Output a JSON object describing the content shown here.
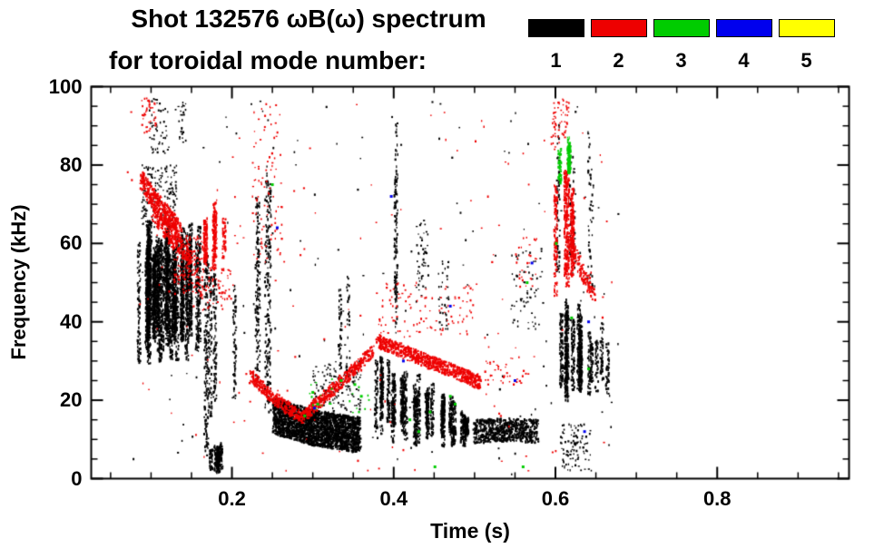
{
  "title": {
    "line1": "Shot 132576 ωB(ω) spectrum",
    "line2": "for toroidal mode number:"
  },
  "legend": {
    "modes": [
      {
        "label": "1",
        "color": "#000000"
      },
      {
        "label": "2",
        "color": "#ee0000"
      },
      {
        "label": "3",
        "color": "#00cc00"
      },
      {
        "label": "4",
        "color": "#0000ee"
      },
      {
        "label": "5",
        "color": "#ffff00"
      }
    ]
  },
  "chart_data": {
    "type": "scatter",
    "title": "Shot 132576 ωB(ω) spectrum for toroidal mode number",
    "xlabel": "Time (s)",
    "ylabel": "Frequency (kHz)",
    "xlim": [
      0.026,
      0.963
    ],
    "ylim": [
      0,
      100
    ],
    "x_major_ticks": [
      0.2,
      0.4,
      0.6,
      0.8
    ],
    "x_tick_labels": [
      "0.2",
      "0.4",
      "0.6",
      "0.8"
    ],
    "x_minor_step": 0.05,
    "y_major_ticks": [
      0,
      20,
      40,
      60,
      80,
      100
    ],
    "y_tick_labels": [
      "0",
      "20",
      "40",
      "60",
      "80",
      "100"
    ],
    "y_minor_step": 5,
    "grid": false,
    "legend_position": "top-right",
    "series": [
      {
        "name": "n=1",
        "mode": 1,
        "color": "#000000",
        "clusters": [
          {
            "shape": "striated",
            "t": [
              0.085,
              0.163
            ],
            "f": [
              28,
              66
            ],
            "n": 3800,
            "lines": 34
          },
          {
            "shape": "scatter",
            "t": [
              0.088,
              0.132
            ],
            "f": [
              64,
              80
            ],
            "n": 170
          },
          {
            "shape": "scatter",
            "t": [
              0.098,
              0.122
            ],
            "f": [
              83,
              97
            ],
            "n": 50
          },
          {
            "shape": "scatter",
            "t": [
              0.133,
              0.143
            ],
            "f": [
              86,
              96
            ],
            "n": 25
          },
          {
            "shape": "striated",
            "t": [
              0.165,
              0.205
            ],
            "f": [
              4,
              62
            ],
            "n": 420,
            "lines": 5
          },
          {
            "shape": "striated",
            "t": [
              0.172,
              0.202
            ],
            "f": [
              1,
              9
            ],
            "n": 260,
            "lines": 6
          },
          {
            "shape": "striated",
            "t": [
              0.225,
              0.268
            ],
            "f": [
              10,
              95
            ],
            "n": 360,
            "lines": 4
          },
          {
            "shape": "band",
            "path": [
              [
                0.252,
                16
              ],
              [
                0.3,
                13
              ],
              [
                0.358,
                11
              ]
            ],
            "thick": 9,
            "n": 2400
          },
          {
            "shape": "scatter",
            "t": [
              0.3,
              0.36
            ],
            "f": [
              17,
              30
            ],
            "n": 140
          },
          {
            "shape": "striated",
            "t": [
              0.325,
              0.345
            ],
            "f": [
              20,
              55
            ],
            "n": 70,
            "lines": 2
          },
          {
            "shape": "striated",
            "t": [
              0.378,
              0.388
            ],
            "f": [
              8,
              33
            ],
            "n": 230,
            "lines": 3
          },
          {
            "shape": "striated",
            "t": [
              0.393,
              0.403
            ],
            "f": [
              8,
              31
            ],
            "n": 230,
            "lines": 3
          },
          {
            "shape": "striated",
            "t": [
              0.408,
              0.418
            ],
            "f": [
              8,
              29
            ],
            "n": 220,
            "lines": 3
          },
          {
            "shape": "striated",
            "t": [
              0.423,
              0.433
            ],
            "f": [
              8,
              27
            ],
            "n": 220,
            "lines": 3
          },
          {
            "shape": "striated",
            "t": [
              0.438,
              0.448
            ],
            "f": [
              8,
              25
            ],
            "n": 210,
            "lines": 3
          },
          {
            "shape": "striated",
            "t": [
              0.453,
              0.463
            ],
            "f": [
              8,
              23
            ],
            "n": 200,
            "lines": 3
          },
          {
            "shape": "striated",
            "t": [
              0.468,
              0.478
            ],
            "f": [
              8,
              21
            ],
            "n": 190,
            "lines": 3
          },
          {
            "shape": "striated",
            "t": [
              0.484,
              0.497
            ],
            "f": [
              8,
              18
            ],
            "n": 180,
            "lines": 3
          },
          {
            "shape": "band",
            "path": [
              [
                0.5,
                12
              ],
              [
                0.545,
                12.5
              ],
              [
                0.578,
                12
              ]
            ],
            "thick": 6,
            "n": 650
          },
          {
            "shape": "striated",
            "t": [
              0.394,
              0.406
            ],
            "f": [
              30,
              96
            ],
            "n": 130,
            "lines": 2
          },
          {
            "shape": "scatter",
            "t": [
              0.428,
              0.443
            ],
            "f": [
              45,
              66
            ],
            "n": 50
          },
          {
            "shape": "scatter",
            "t": [
              0.455,
              0.468
            ],
            "f": [
              38,
              56
            ],
            "n": 35
          },
          {
            "shape": "striated",
            "t": [
              0.598,
              0.632
            ],
            "f": [
              18,
              46
            ],
            "n": 850,
            "lines": 8
          },
          {
            "shape": "striated",
            "t": [
              0.632,
              0.667
            ],
            "f": [
              20,
              40
            ],
            "n": 260,
            "lines": 5
          },
          {
            "shape": "striated",
            "t": [
              0.6,
              0.662
            ],
            "f": [
              46,
              97
            ],
            "n": 170,
            "lines": 6
          },
          {
            "shape": "scatter",
            "t": [
              0.605,
              0.645
            ],
            "f": [
              2,
              14
            ],
            "n": 100
          },
          {
            "shape": "scatter",
            "t": [
              0.545,
              0.585
            ],
            "f": [
              38,
              58
            ],
            "n": 60
          },
          {
            "shape": "scatter",
            "t": [
              0.07,
              0.68
            ],
            "f": [
              1,
              97
            ],
            "n": 160
          }
        ]
      },
      {
        "name": "n=2",
        "mode": 2,
        "color": "#ee0000",
        "clusters": [
          {
            "shape": "band",
            "path": [
              [
                0.088,
                76
              ],
              [
                0.112,
                69
              ],
              [
                0.136,
                63
              ]
            ],
            "thick": 5,
            "n": 420
          },
          {
            "shape": "band",
            "path": [
              [
                0.102,
                68
              ],
              [
                0.127,
                61
              ],
              [
                0.15,
                56
              ]
            ],
            "thick": 4,
            "n": 240
          },
          {
            "shape": "scatter",
            "t": [
              0.128,
              0.165
            ],
            "f": [
              47,
              62
            ],
            "n": 150
          },
          {
            "shape": "striated",
            "t": [
              0.163,
              0.198
            ],
            "f": [
              52,
              71
            ],
            "n": 340,
            "lines": 6
          },
          {
            "shape": "scatter",
            "t": [
              0.15,
              0.2
            ],
            "f": [
              43,
              54
            ],
            "n": 80
          },
          {
            "shape": "band",
            "path": [
              [
                0.224,
                26
              ],
              [
                0.252,
                20.5
              ],
              [
                0.286,
                15.5
              ],
              [
                0.322,
                22
              ],
              [
                0.352,
                28
              ],
              [
                0.374,
                32.5
              ]
            ],
            "thick": 3.2,
            "n": 700
          },
          {
            "shape": "band",
            "path": [
              [
                0.38,
                35
              ],
              [
                0.43,
                31
              ],
              [
                0.472,
                27.5
              ],
              [
                0.507,
                24.5
              ]
            ],
            "thick": 3.4,
            "n": 720
          },
          {
            "shape": "scatter",
            "t": [
              0.38,
              0.5
            ],
            "f": [
              36,
              50
            ],
            "n": 110
          },
          {
            "shape": "striated",
            "t": [
              0.598,
              0.626
            ],
            "f": [
              44,
              80
            ],
            "n": 560,
            "lines": 5
          },
          {
            "shape": "band",
            "path": [
              [
                0.616,
                61
              ],
              [
                0.632,
                53
              ],
              [
                0.647,
                47
              ]
            ],
            "thick": 4,
            "n": 130
          },
          {
            "shape": "scatter",
            "t": [
              0.225,
              0.262
            ],
            "f": [
              55,
              96
            ],
            "n": 90
          },
          {
            "shape": "scatter",
            "t": [
              0.088,
              0.106
            ],
            "f": [
              88,
              97
            ],
            "n": 40
          },
          {
            "shape": "scatter",
            "t": [
              0.595,
              0.618
            ],
            "f": [
              84,
              97
            ],
            "n": 60
          },
          {
            "shape": "scatter",
            "t": [
              0.51,
              0.568
            ],
            "f": [
              24,
              31
            ],
            "n": 40
          },
          {
            "shape": "scatter",
            "t": [
              0.55,
              0.578
            ],
            "f": [
              48,
              62
            ],
            "n": 30
          },
          {
            "shape": "scatter",
            "t": [
              0.07,
              0.67
            ],
            "f": [
              2,
              97
            ],
            "n": 140
          }
        ]
      },
      {
        "name": "n=3",
        "mode": 3,
        "color": "#00cc00",
        "clusters": [
          {
            "shape": "striated",
            "t": [
              0.603,
              0.618
            ],
            "f": [
              74,
              88
            ],
            "n": 170,
            "lines": 3
          },
          {
            "shape": "dots",
            "size": 3,
            "pts": [
              [
                0.3,
                22
              ],
              [
                0.306,
                19
              ],
              [
                0.335,
                25
              ],
              [
                0.352,
                24
              ],
              [
                0.36,
                21
              ],
              [
                0.47,
                21
              ],
              [
                0.476,
                19
              ],
              [
                0.56,
                3
              ],
              [
                0.565,
                50
              ],
              [
                0.601,
                60
              ],
              [
                0.445,
                17
              ],
              [
                0.451,
                3
              ],
              [
                0.25,
                75
              ],
              [
                0.42,
                15
              ],
              [
                0.431,
                12
              ],
              [
                0.62,
                41
              ],
              [
                0.641,
                28
              ],
              [
                0.29,
                16
              ]
            ]
          },
          {
            "shape": "scatter",
            "t": [
              0.29,
              0.37
            ],
            "f": [
              15,
              26
            ],
            "n": 22
          }
        ]
      },
      {
        "name": "n=4",
        "mode": 4,
        "color": "#0000ee",
        "clusters": [
          {
            "shape": "dots",
            "size": 3,
            "pts": [
              [
                0.397,
                72
              ],
              [
                0.55,
                25
              ],
              [
                0.636,
                12
              ],
              [
                0.641,
                40
              ],
              [
                0.412,
                30
              ],
              [
                0.571,
                55
              ],
              [
                0.47,
                44
              ],
              [
                0.302,
                18
              ],
              [
                0.256,
                64
              ]
            ]
          }
        ]
      },
      {
        "name": "n=5",
        "mode": 5,
        "color": "#ffff00",
        "clusters": []
      }
    ]
  }
}
